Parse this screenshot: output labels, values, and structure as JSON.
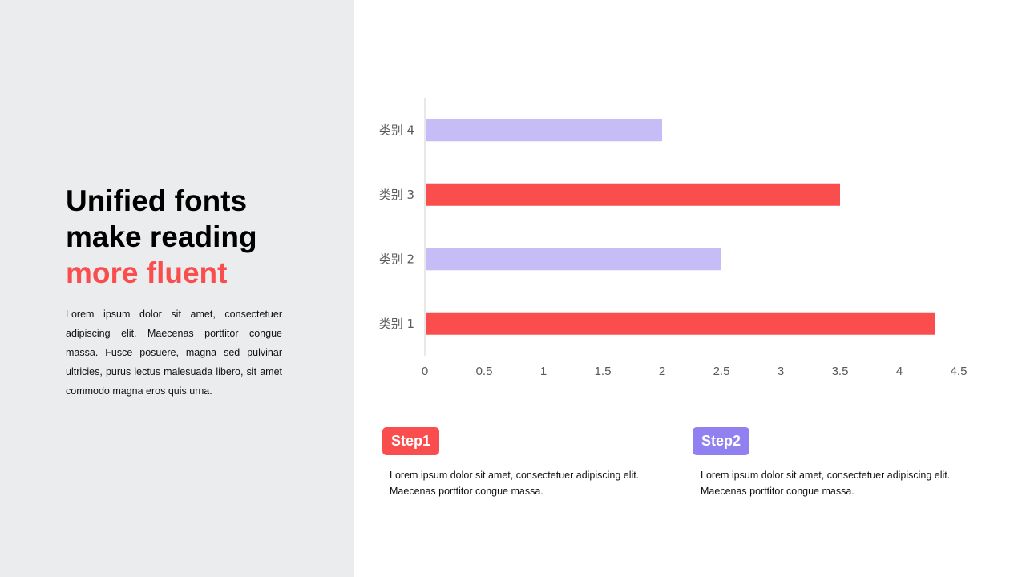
{
  "slide": {
    "title_line1": "Unified fonts",
    "title_line2": "make reading",
    "title_accent": "more fluent",
    "body": "Lorem ipsum dolor sit amet, consectetuer adipiscing elit. Maecenas porttitor congue massa. Fusce posuere, magna sed pulvinar ultricies, purus lectus malesuada libero, sit amet commodo magna eros quis urna."
  },
  "steps": [
    {
      "label": "Step1",
      "text": "Lorem ipsum dolor sit amet, consectetuer adipiscing elit. Maecenas porttitor congue massa.",
      "color": "#fa4e4e"
    },
    {
      "label": "Step2",
      "text": "Lorem ipsum dolor sit amet, consectetuer adipiscing elit. Maecenas porttitor congue massa.",
      "color": "#9181f0"
    }
  ],
  "chart_data": {
    "type": "bar",
    "orientation": "horizontal",
    "categories": [
      "类别 1",
      "类别 2",
      "类别 3",
      "类别 4"
    ],
    "values": [
      4.3,
      2.5,
      3.5,
      2.0
    ],
    "colors": [
      "#fa4e4e",
      "#c6bdf7",
      "#fa4e4e",
      "#c6bdf7"
    ],
    "xlim": [
      0,
      4.5
    ],
    "xticks": [
      "0",
      "0.5",
      "1",
      "1.5",
      "2",
      "2.5",
      "3",
      "3.5",
      "4",
      "4.5"
    ],
    "grid": false,
    "title": "",
    "xlabel": "",
    "ylabel": ""
  }
}
